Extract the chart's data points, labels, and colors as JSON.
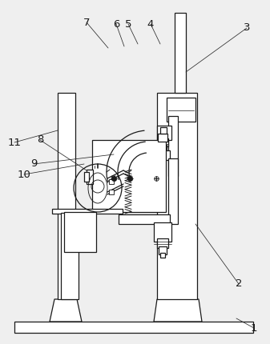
{
  "bg_color": "#efefef",
  "line_color": "#1a1a1a",
  "label_color": "#1a1a1a",
  "lw": 0.9
}
